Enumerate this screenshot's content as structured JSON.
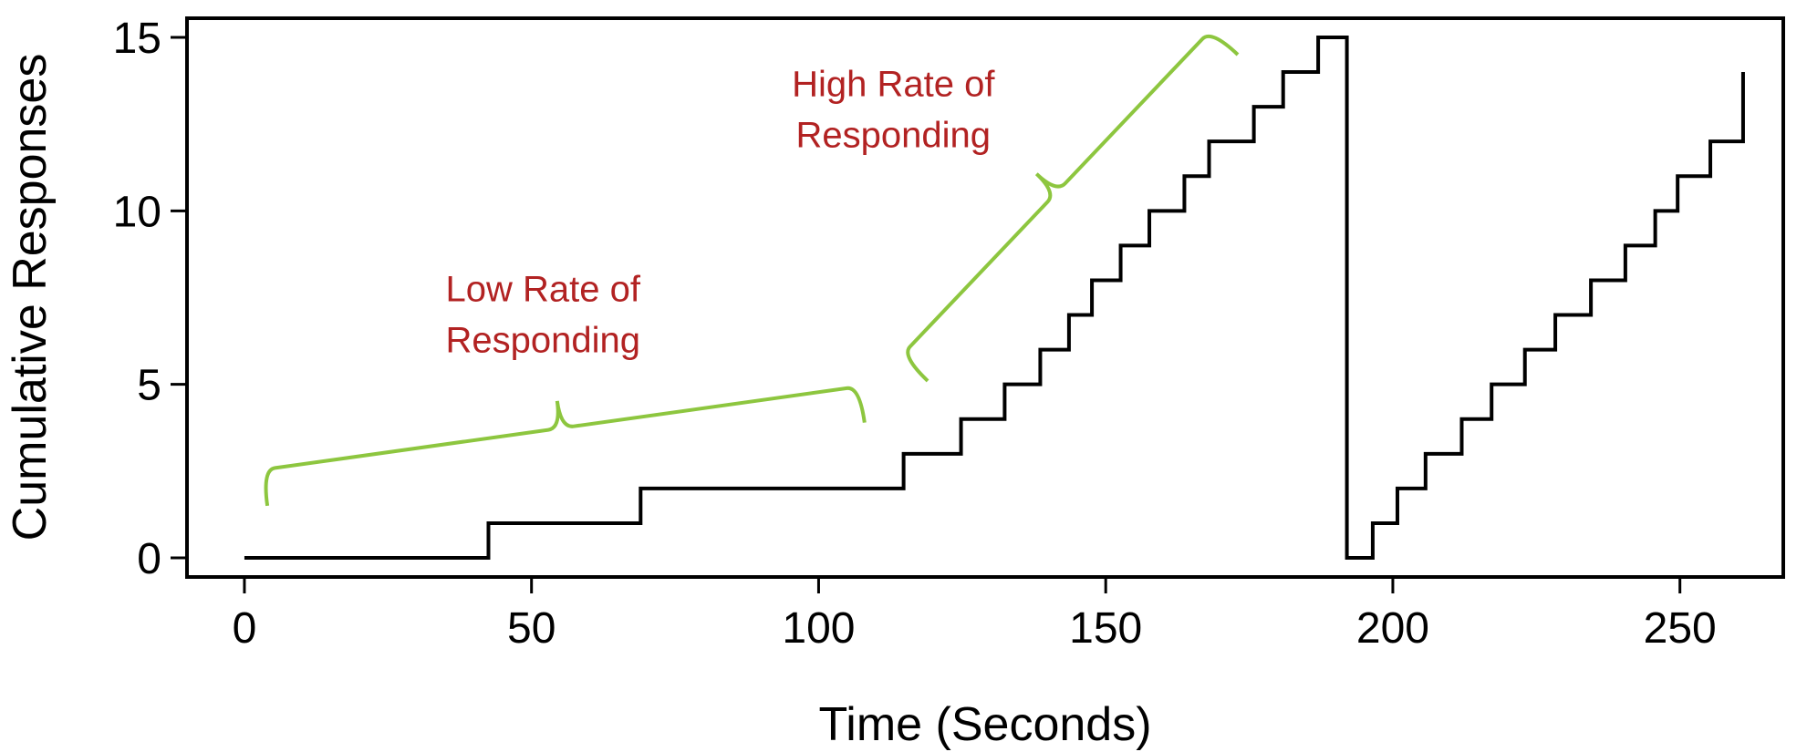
{
  "chart_data": {
    "type": "line",
    "step": true,
    "xlabel": "Time (Seconds)",
    "ylabel": "Cumulative Responses",
    "xlim": [
      -10,
      268
    ],
    "ylim": [
      -0.55,
      15.55
    ],
    "xticks": [
      0,
      50,
      100,
      150,
      200,
      250
    ],
    "yticks": [
      0,
      5,
      10,
      15
    ],
    "grid": false,
    "legend": "none",
    "series": [
      {
        "color": "#000000",
        "x": [
          0,
          42.5,
          69,
          114.8,
          124.8,
          132.4,
          138.6,
          143.6,
          147.6,
          152.6,
          157.6,
          163.7,
          168,
          175.8,
          180.9,
          187,
          194,
          196.5,
          200.8,
          205.7,
          212,
          217.2,
          223,
          228.3,
          234.5,
          240.5,
          245.7,
          249.6,
          255.3,
          261
        ],
        "y": [
          0,
          1,
          2,
          3,
          4,
          5,
          6,
          7,
          8,
          9,
          10,
          11,
          12,
          13,
          14,
          15,
          0,
          1,
          2,
          3,
          4,
          5,
          6,
          7,
          8,
          9,
          10,
          11,
          12,
          13
        ],
        "end_x": [
          192,
          261
        ],
        "end_y": [
          15,
          14
        ]
      }
    ],
    "annotations": [
      {
        "text_lines": [
          "Low Rate of",
          "Responding"
        ],
        "color": "#b22222",
        "x": 52,
        "y": 7.4
      },
      {
        "text_lines": [
          "High Rate of",
          "Responding"
        ],
        "color": "#b22222",
        "x": 113,
        "y": 13.3
      }
    ],
    "braces": [
      {
        "color": "#8dc63f",
        "from": [
          4,
          1.5
        ],
        "to": [
          108,
          3.9
        ]
      },
      {
        "color": "#8dc63f",
        "from": [
          119,
          5.1
        ],
        "to": [
          173,
          14.5
        ]
      }
    ]
  }
}
